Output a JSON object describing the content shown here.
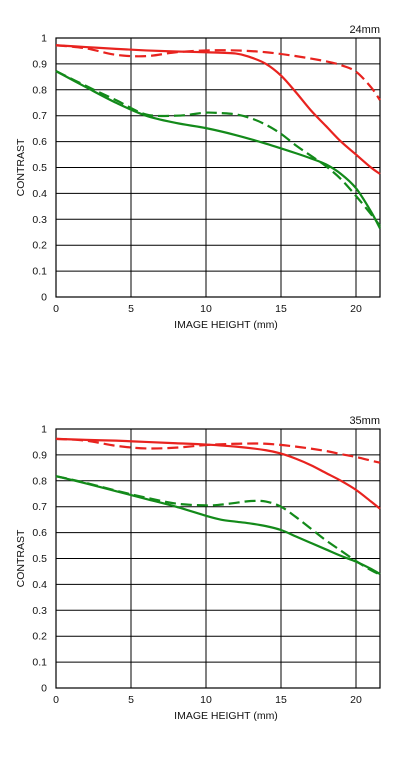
{
  "chart_data": [
    {
      "type": "line",
      "title": "24mm",
      "xlabel": "IMAGE HEIGHT (mm)",
      "ylabel": "CONTRAST",
      "xlim": [
        0,
        21.6
      ],
      "ylim": [
        0,
        1
      ],
      "xticks": [
        0,
        5,
        10,
        15,
        20
      ],
      "yticks": [
        0,
        0.1,
        0.2,
        0.3,
        0.4,
        0.5,
        0.6,
        0.7,
        0.8,
        0.9,
        1
      ],
      "xtick_labels": [
        "0",
        "5",
        "10",
        "15",
        "20"
      ],
      "ytick_labels": [
        "0",
        "0.1",
        "0.2",
        "0.3",
        "0.4",
        "0.5",
        "0.6",
        "0.7",
        "0.8",
        "0.9",
        "1"
      ],
      "grid": true,
      "series": [
        {
          "color": "#e8231f",
          "style": "solid",
          "x": [
            0,
            2,
            4,
            6,
            8,
            10,
            12,
            13,
            14,
            15,
            16,
            17,
            18,
            19,
            20,
            21,
            21.6
          ],
          "y": [
            0.972,
            0.965,
            0.958,
            0.952,
            0.948,
            0.945,
            0.94,
            0.925,
            0.9,
            0.855,
            0.79,
            0.72,
            0.66,
            0.6,
            0.55,
            0.5,
            0.475
          ]
        },
        {
          "color": "#e8231f",
          "style": "dashed",
          "x": [
            0,
            2,
            4,
            6,
            8,
            10,
            12,
            14,
            16,
            18,
            19,
            20,
            21,
            21.6
          ],
          "y": [
            0.972,
            0.96,
            0.935,
            0.93,
            0.945,
            0.952,
            0.952,
            0.945,
            0.93,
            0.91,
            0.895,
            0.87,
            0.81,
            0.76
          ]
        },
        {
          "color": "#138a1a",
          "style": "solid",
          "x": [
            0,
            2,
            4,
            6,
            8,
            10,
            12,
            14,
            16,
            17,
            18,
            19,
            20,
            21,
            21.6
          ],
          "y": [
            0.872,
            0.81,
            0.75,
            0.7,
            0.672,
            0.652,
            0.625,
            0.592,
            0.555,
            0.535,
            0.512,
            0.475,
            0.42,
            0.33,
            0.265
          ]
        },
        {
          "color": "#138a1a",
          "style": "dashed",
          "x": [
            0,
            2,
            4,
            6,
            8,
            9,
            10,
            11,
            12,
            13,
            14,
            15,
            16,
            17,
            18,
            19,
            20,
            21,
            21.6
          ],
          "y": [
            0.872,
            0.815,
            0.76,
            0.705,
            0.7,
            0.705,
            0.712,
            0.71,
            0.705,
            0.69,
            0.665,
            0.63,
            0.585,
            0.545,
            0.505,
            0.455,
            0.39,
            0.32,
            0.275
          ]
        }
      ]
    },
    {
      "type": "line",
      "title": "35mm",
      "xlabel": "IMAGE HEIGHT (mm)",
      "ylabel": "CONTRAST",
      "xlim": [
        0,
        21.6
      ],
      "ylim": [
        0,
        1
      ],
      "xticks": [
        0,
        5,
        10,
        15,
        20
      ],
      "yticks": [
        0,
        0.1,
        0.2,
        0.3,
        0.4,
        0.5,
        0.6,
        0.7,
        0.8,
        0.9,
        1
      ],
      "xtick_labels": [
        "0",
        "5",
        "10",
        "15",
        "20"
      ],
      "ytick_labels": [
        "0",
        "0.1",
        "0.2",
        "0.3",
        "0.4",
        "0.5",
        "0.6",
        "0.7",
        "0.8",
        "0.9",
        "1"
      ],
      "grid": true,
      "series": [
        {
          "color": "#e8231f",
          "style": "solid",
          "x": [
            0,
            2,
            4,
            6,
            8,
            10,
            12,
            14,
            15,
            16,
            17,
            18,
            19,
            20,
            21,
            21.6
          ],
          "y": [
            0.962,
            0.958,
            0.955,
            0.95,
            0.945,
            0.94,
            0.932,
            0.918,
            0.905,
            0.885,
            0.86,
            0.83,
            0.8,
            0.765,
            0.72,
            0.692
          ]
        },
        {
          "color": "#e8231f",
          "style": "dashed",
          "x": [
            0,
            2,
            4,
            6,
            8,
            10,
            12,
            14,
            16,
            18,
            19,
            20,
            21,
            21.6
          ],
          "y": [
            0.962,
            0.955,
            0.935,
            0.925,
            0.928,
            0.938,
            0.943,
            0.943,
            0.932,
            0.915,
            0.903,
            0.892,
            0.878,
            0.87
          ]
        },
        {
          "color": "#138a1a",
          "style": "solid",
          "x": [
            0,
            2,
            4,
            6,
            8,
            10,
            11,
            12,
            13,
            14,
            15,
            16,
            17,
            18,
            19,
            20,
            21,
            21.6
          ],
          "y": [
            0.818,
            0.79,
            0.76,
            0.73,
            0.7,
            0.665,
            0.65,
            0.642,
            0.635,
            0.625,
            0.61,
            0.585,
            0.56,
            0.535,
            0.51,
            0.488,
            0.46,
            0.44
          ]
        },
        {
          "color": "#138a1a",
          "style": "dashed",
          "x": [
            0,
            2,
            4,
            6,
            8,
            10,
            11,
            12,
            13,
            14,
            15,
            16,
            17,
            18,
            19,
            20,
            21,
            21.6
          ],
          "y": [
            0.818,
            0.792,
            0.762,
            0.735,
            0.712,
            0.705,
            0.708,
            0.715,
            0.722,
            0.72,
            0.7,
            0.66,
            0.615,
            0.57,
            0.53,
            0.49,
            0.455,
            0.438
          ]
        }
      ]
    }
  ]
}
